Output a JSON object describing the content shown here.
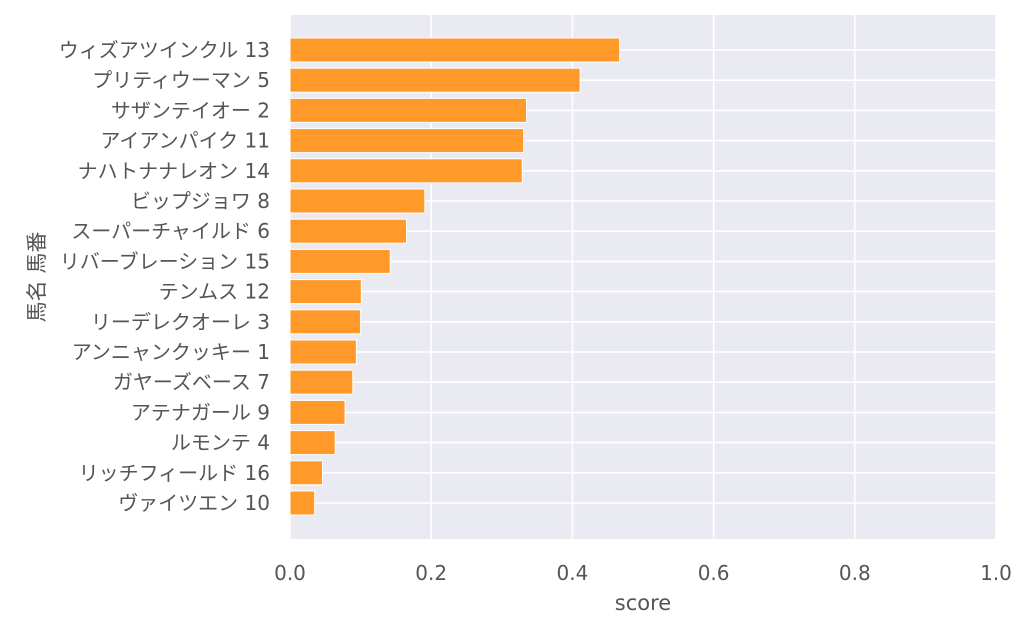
{
  "chart_data": {
    "type": "bar",
    "orientation": "horizontal",
    "title": "",
    "xlabel": "score",
    "ylabel": "馬名 馬番",
    "xlim": [
      0.0,
      1.0
    ],
    "xticks": [
      "0.0",
      "0.2",
      "0.4",
      "0.6",
      "0.8",
      "1.0"
    ],
    "grid": true,
    "colors": {
      "background": "#eaeaf2",
      "bar": "#ff9a2a",
      "grid": "#ffffff",
      "text": "#555555"
    },
    "categories": [
      "ウィズアツインクル 13",
      "プリティウーマン 5",
      "サザンテイオー 2",
      "アイアンパイク 11",
      "ナハトナナレオン 14",
      "ビップジョワ 8",
      "スーパーチャイルド 6",
      "リバーブレーション 15",
      "テンムス 12",
      "リーデレクオーレ 3",
      "アンニャンクッキー 1",
      "ガヤーズベース 7",
      "アテナガール 9",
      "ルモンテ 4",
      "リッチフィールド 16",
      "ヴァイツエン 10"
    ],
    "values": [
      0.467,
      0.411,
      0.335,
      0.331,
      0.329,
      0.191,
      0.165,
      0.142,
      0.101,
      0.1,
      0.094,
      0.089,
      0.078,
      0.064,
      0.046,
      0.035
    ]
  }
}
